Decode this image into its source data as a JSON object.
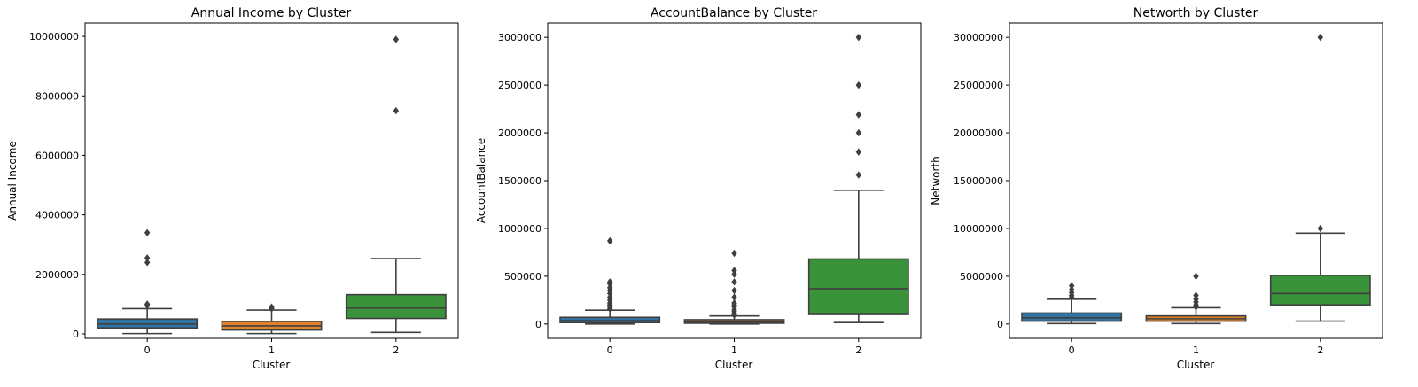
{
  "chart_data": [
    {
      "type": "boxplot",
      "title": "Annual Income by Cluster",
      "xlabel": "Cluster",
      "ylabel": "Annual Income",
      "categories": [
        "0",
        "1",
        "2"
      ],
      "ylim": [
        -150000,
        10450000
      ],
      "yticks": [
        0,
        2000000,
        4000000,
        6000000,
        8000000,
        10000000
      ],
      "ytick_labels": [
        "0",
        "2000000",
        "4000000",
        "6000000",
        "8000000",
        "10000000"
      ],
      "boxes": [
        {
          "category": "0",
          "whisker_low": 10000,
          "q1": 200000,
          "median": 330000,
          "q3": 500000,
          "whisker_high": 850000,
          "fliers": [
            950000,
            1000000,
            2400000,
            2550000,
            3400000
          ],
          "color": "#3274a1"
        },
        {
          "category": "1",
          "whisker_low": 10000,
          "q1": 130000,
          "median": 270000,
          "q3": 420000,
          "whisker_high": 800000,
          "fliers": [
            850000,
            900000
          ],
          "color": "#e1812c"
        },
        {
          "category": "2",
          "whisker_low": 50000,
          "q1": 520000,
          "median": 870000,
          "q3": 1320000,
          "whisker_high": 2530000,
          "fliers": [
            7500000,
            9900000
          ],
          "color": "#3a923a"
        }
      ]
    },
    {
      "type": "boxplot",
      "title": "AccountBalance by Cluster",
      "xlabel": "Cluster",
      "ylabel": "AccountBalance",
      "categories": [
        "0",
        "1",
        "2"
      ],
      "ylim": [
        -150000,
        3150000
      ],
      "yticks": [
        0,
        500000,
        1000000,
        1500000,
        2000000,
        2500000,
        3000000
      ],
      "ytick_labels": [
        "0",
        "500000",
        "1000000",
        "1500000",
        "2000000",
        "2500000",
        "3000000"
      ],
      "boxes": [
        {
          "category": "0",
          "whisker_low": 0,
          "q1": 15000,
          "median": 35000,
          "q3": 70000,
          "whisker_high": 145000,
          "fliers": [
            160000,
            180000,
            200000,
            220000,
            250000,
            280000,
            320000,
            350000,
            380000,
            420000,
            440000,
            870000
          ],
          "color": "#3274a1"
        },
        {
          "category": "1",
          "whisker_low": 0,
          "q1": 8000,
          "median": 22000,
          "q3": 45000,
          "whisker_high": 85000,
          "fliers": [
            95000,
            110000,
            130000,
            150000,
            180000,
            200000,
            220000,
            280000,
            350000,
            440000,
            520000,
            560000,
            740000
          ],
          "color": "#e1812c"
        },
        {
          "category": "2",
          "whisker_low": 15000,
          "q1": 100000,
          "median": 370000,
          "q3": 680000,
          "whisker_high": 1400000,
          "fliers": [
            1560000,
            1800000,
            2000000,
            2190000,
            2500000,
            3000000
          ],
          "color": "#3a923a"
        }
      ]
    },
    {
      "type": "boxplot",
      "title": "Networth by Cluster",
      "xlabel": "Cluster",
      "ylabel": "Networth",
      "categories": [
        "0",
        "1",
        "2"
      ],
      "ylim": [
        -1500000,
        31500000
      ],
      "yticks": [
        0,
        5000000,
        10000000,
        15000000,
        20000000,
        25000000,
        30000000
      ],
      "ytick_labels": [
        "0",
        "5000000",
        "10000000",
        "15000000",
        "20000000",
        "25000000",
        "30000000"
      ],
      "boxes": [
        {
          "category": "0",
          "whisker_low": 50000,
          "q1": 300000,
          "median": 650000,
          "q3": 1150000,
          "whisker_high": 2600000,
          "fliers": [
            2800000,
            3000000,
            3300000,
            3600000,
            4000000
          ],
          "color": "#3274a1"
        },
        {
          "category": "1",
          "whisker_low": 50000,
          "q1": 300000,
          "median": 550000,
          "q3": 850000,
          "whisker_high": 1700000,
          "fliers": [
            1800000,
            2000000,
            2300000,
            2600000,
            3000000,
            5000000
          ],
          "color": "#e1812c"
        },
        {
          "category": "2",
          "whisker_low": 300000,
          "q1": 2000000,
          "median": 3200000,
          "q3": 5100000,
          "whisker_high": 9500000,
          "fliers": [
            10000000,
            30000000
          ],
          "color": "#3a923a"
        }
      ]
    }
  ]
}
